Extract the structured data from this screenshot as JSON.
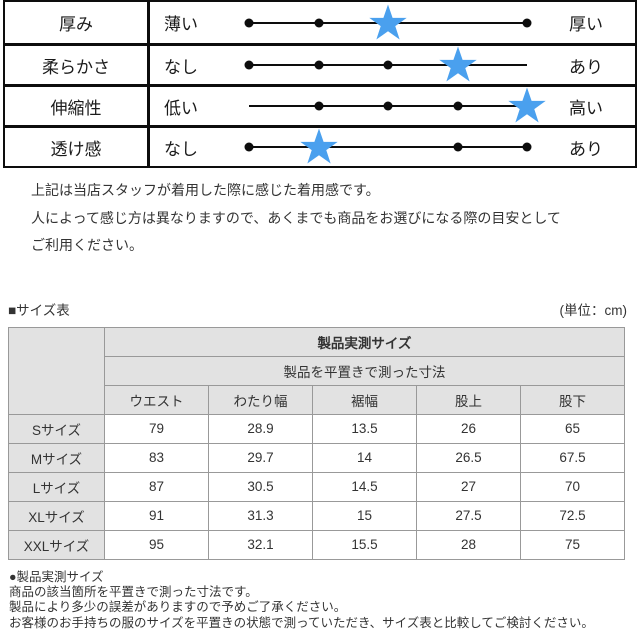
{
  "feel_table": {
    "scale_points": 5,
    "star_color": "#4AA0EE",
    "rows": [
      {
        "label": "厚み",
        "min": "薄い",
        "max": "厚い",
        "value": 3
      },
      {
        "label": "柔らかさ",
        "min": "なし",
        "max": "あり",
        "value": 4
      },
      {
        "label": "伸縮性",
        "min": "低い",
        "max": "高い",
        "value": 5
      },
      {
        "label": "透け感",
        "min": "なし",
        "max": "あり",
        "value": 2
      }
    ]
  },
  "notes": [
    "上記は当店スタッフが着用した際に感じた着用感です。",
    "人によって感じ方は異なりますので、あくまでも商品をお選びになる際の目安として",
    "ご利用ください。"
  ],
  "size_section": {
    "title": "■サイズ表",
    "unit": "(単位：cm)",
    "table": {
      "header1": "製品実測サイズ",
      "header2": "製品を平置きで測った寸法",
      "columns": [
        "ウエスト",
        "わたり幅",
        "裾幅",
        "股上",
        "股下"
      ],
      "rows": [
        {
          "size": "Sサイズ",
          "values": [
            "79",
            "28.9",
            "13.5",
            "26",
            "65"
          ]
        },
        {
          "size": "Mサイズ",
          "values": [
            "83",
            "29.7",
            "14",
            "26.5",
            "67.5"
          ]
        },
        {
          "size": "Lサイズ",
          "values": [
            "87",
            "30.5",
            "14.5",
            "27",
            "70"
          ]
        },
        {
          "size": "XLサイズ",
          "values": [
            "91",
            "31.3",
            "15",
            "27.5",
            "72.5"
          ]
        },
        {
          "size": "XXLサイズ",
          "values": [
            "95",
            "32.1",
            "15.5",
            "28",
            "75"
          ]
        }
      ]
    }
  },
  "footer": {
    "heading": "●製品実測サイズ",
    "lines": [
      "商品の該当箇所を平置きで測った寸法です。",
      "製品により多少の誤差がありますので予めご了承ください。",
      "お客様のお手持ちの服のサイズを平置きの状態で測っていただき、サイズ表と比較してご検討ください。"
    ]
  }
}
